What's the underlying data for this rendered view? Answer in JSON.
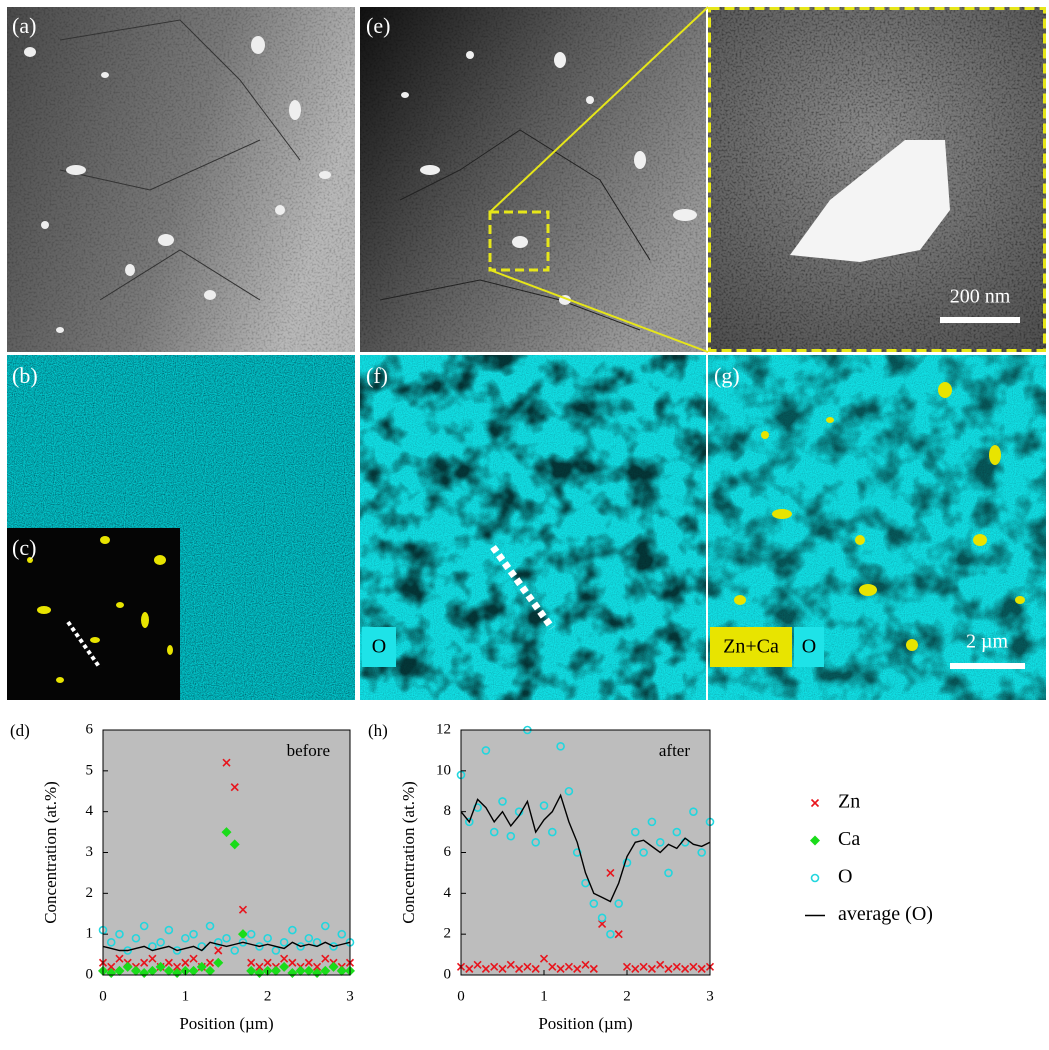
{
  "images": {
    "a": "(a)",
    "b": "(b)",
    "c": "(c)",
    "e": "(e)",
    "f": "(f)",
    "g": "(g)"
  },
  "scale_bars": {
    "zoom": "200 nm",
    "g": "2 µm"
  },
  "overlays": {
    "f": [
      "O"
    ],
    "g": [
      "Zn+Ca",
      "O"
    ]
  },
  "chart_data": [
    {
      "type": "scatter",
      "label": "(d)",
      "annotation": "before",
      "xlabel": "Position (µm)",
      "ylabel": "Concentration (at.%)",
      "x": [
        0,
        0.1,
        0.2,
        0.3,
        0.4,
        0.5,
        0.6,
        0.7,
        0.8,
        0.9,
        1,
        1.1,
        1.2,
        1.3,
        1.4,
        1.5,
        1.6,
        1.7,
        1.8,
        1.9,
        2,
        2.1,
        2.2,
        2.3,
        2.4,
        2.5,
        2.6,
        2.7,
        2.8,
        2.9,
        3
      ],
      "xlim": [
        0,
        3
      ],
      "xticks": [
        0,
        1,
        2,
        3
      ],
      "ylim": [
        0,
        6
      ],
      "yticks": [
        0,
        1,
        2,
        3,
        4,
        5,
        6
      ],
      "series": [
        {
          "name": "Zn",
          "color": "#e8141c",
          "marker": "x",
          "values": [
            0.3,
            0.2,
            0.4,
            0.3,
            0.2,
            0.3,
            0.4,
            0.2,
            0.3,
            0.2,
            0.3,
            0.4,
            0.2,
            0.3,
            0.6,
            5.2,
            4.6,
            1.6,
            0.3,
            0.2,
            0.3,
            0.2,
            0.4,
            0.3,
            0.2,
            0.3,
            0.2,
            0.4,
            0.3,
            0.2,
            0.3
          ]
        },
        {
          "name": "Ca",
          "color": "#1adc1a",
          "marker": "diamond",
          "values": [
            0.1,
            0.05,
            0.1,
            0.2,
            0.1,
            0.05,
            0.1,
            0.2,
            0.1,
            0.05,
            0.1,
            0.1,
            0.2,
            0.1,
            0.3,
            3.5,
            3.2,
            1,
            0.1,
            0.05,
            0.1,
            0.1,
            0.2,
            0.05,
            0.1,
            0.1,
            0.05,
            0.1,
            0.2,
            0.1,
            0.1
          ]
        },
        {
          "name": "O",
          "color": "#22d6de",
          "marker": "circle",
          "values": [
            1.1,
            0.8,
            1,
            0.6,
            0.9,
            1.2,
            0.7,
            0.8,
            1.1,
            0.6,
            0.9,
            1,
            0.7,
            1.2,
            0.8,
            0.9,
            0.6,
            0.8,
            1,
            0.7,
            0.9,
            0.6,
            0.8,
            1.1,
            0.7,
            0.9,
            0.8,
            1.2,
            0.7,
            1,
            0.8
          ]
        },
        {
          "name": "average (O)",
          "color": "#000000",
          "marker": "line",
          "values": [
            0.7,
            0.65,
            0.6,
            0.6,
            0.65,
            0.7,
            0.6,
            0.65,
            0.7,
            0.6,
            0.65,
            0.7,
            0.6,
            0.8,
            0.75,
            0.7,
            0.75,
            0.8,
            0.75,
            0.7,
            0.75,
            0.7,
            0.65,
            0.8,
            0.7,
            0.75,
            0.7,
            0.8,
            0.7,
            0.75,
            0.8
          ]
        }
      ]
    },
    {
      "type": "scatter",
      "label": "(h)",
      "annotation": "after",
      "xlabel": "Position (µm)",
      "ylabel": "Concentration (at.%)",
      "x": [
        0,
        0.1,
        0.2,
        0.3,
        0.4,
        0.5,
        0.6,
        0.7,
        0.8,
        0.9,
        1,
        1.1,
        1.2,
        1.3,
        1.4,
        1.5,
        1.6,
        1.7,
        1.8,
        1.9,
        2,
        2.1,
        2.2,
        2.3,
        2.4,
        2.5,
        2.6,
        2.7,
        2.8,
        2.9,
        3
      ],
      "xlim": [
        0,
        3
      ],
      "xticks": [
        0,
        1,
        2,
        3
      ],
      "ylim": [
        0,
        12
      ],
      "yticks": [
        0,
        2,
        4,
        6,
        8,
        10,
        12
      ],
      "series": [
        {
          "name": "Zn",
          "color": "#e8141c",
          "marker": "x",
          "values": [
            0.4,
            0.3,
            0.5,
            0.3,
            0.4,
            0.3,
            0.5,
            0.3,
            0.4,
            0.3,
            0.8,
            0.4,
            0.3,
            0.4,
            0.3,
            0.5,
            0.3,
            2.5,
            5,
            2,
            0.4,
            0.3,
            0.4,
            0.3,
            0.5,
            0.3,
            0.4,
            0.3,
            0.4,
            0.3,
            0.4
          ]
        },
        {
          "name": "O",
          "color": "#22d6de",
          "marker": "circle",
          "values": [
            9.8,
            7.5,
            8.2,
            11,
            7,
            8.5,
            6.8,
            8,
            12,
            6.5,
            8.3,
            7,
            11.2,
            9,
            6,
            4.5,
            3.5,
            2.8,
            2,
            3.5,
            5.5,
            7,
            6,
            7.5,
            6.5,
            5,
            7,
            6.5,
            8,
            6,
            7.5
          ]
        },
        {
          "name": "average (O)",
          "color": "#000000",
          "marker": "line",
          "values": [
            8,
            7.5,
            8.6,
            8.2,
            7.5,
            8,
            7.3,
            7.8,
            8.5,
            7,
            7.6,
            8,
            8.8,
            7.5,
            6.5,
            5,
            4,
            3.8,
            3.6,
            4.5,
            5.8,
            6.5,
            6.6,
            6.3,
            6,
            6.4,
            6.2,
            6.7,
            6.4,
            6.3,
            6.5
          ]
        }
      ]
    }
  ]
}
